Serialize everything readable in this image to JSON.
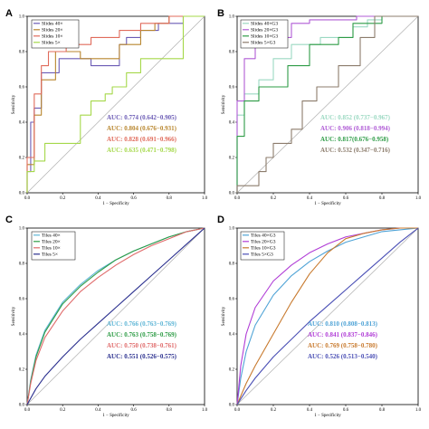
{
  "chart_data": [
    {
      "panel_label": "A",
      "type": "line",
      "xlabel": "1 − Specificity",
      "ylabel": "Sensitivity",
      "xlim": [
        0,
        1
      ],
      "ylim": [
        0,
        1
      ],
      "ticks": [
        "0.0",
        "0.2",
        "0.4",
        "0.6",
        "0.8",
        "1.0"
      ],
      "legend_position": "top-left",
      "grid": false,
      "diagonal": true,
      "series": [
        {
          "name": "Slides 40×",
          "color": "#6b5bb5",
          "x": [
            0,
            0,
            0.02,
            0.02,
            0.04,
            0.04,
            0.08,
            0.08,
            0.18,
            0.18,
            0.36,
            0.36,
            0.52,
            0.52,
            0.56,
            0.56,
            0.64,
            0.64,
            0.74,
            0.74,
            0.88,
            0.88,
            1
          ],
          "y": [
            0,
            0.12,
            0.12,
            0.4,
            0.4,
            0.48,
            0.48,
            0.68,
            0.68,
            0.76,
            0.76,
            0.72,
            0.72,
            0.84,
            0.84,
            0.88,
            0.88,
            0.92,
            0.92,
            0.96,
            0.96,
            1,
            1
          ]
        },
        {
          "name": "Slides 20×",
          "color": "#b8862e",
          "x": [
            0,
            0,
            0.04,
            0.04,
            0.08,
            0.08,
            0.16,
            0.16,
            0.3,
            0.3,
            0.52,
            0.52,
            0.64,
            0.64,
            0.72,
            0.72,
            0.8,
            0.8,
            1
          ],
          "y": [
            0,
            0.16,
            0.16,
            0.44,
            0.44,
            0.64,
            0.64,
            0.8,
            0.8,
            0.76,
            0.76,
            0.84,
            0.84,
            0.92,
            0.92,
            0.96,
            0.96,
            1,
            1
          ]
        },
        {
          "name": "Slides 10×",
          "color": "#e06b5b",
          "x": [
            0,
            0,
            0.04,
            0.04,
            0.08,
            0.08,
            0.12,
            0.12,
            0.22,
            0.22,
            0.36,
            0.36,
            0.52,
            0.52,
            0.64,
            0.64,
            0.8,
            0.8,
            1
          ],
          "y": [
            0,
            0.2,
            0.2,
            0.56,
            0.56,
            0.72,
            0.72,
            0.8,
            0.8,
            0.84,
            0.84,
            0.88,
            0.88,
            0.92,
            0.92,
            0.96,
            0.96,
            1,
            1
          ]
        },
        {
          "name": "Slides 5×",
          "color": "#a5d84a",
          "x": [
            0,
            0,
            0.04,
            0.04,
            0.1,
            0.1,
            0.3,
            0.3,
            0.36,
            0.36,
            0.44,
            0.44,
            0.48,
            0.48,
            0.56,
            0.56,
            0.64,
            0.64,
            0.88,
            0.88,
            1
          ],
          "y": [
            0,
            0.12,
            0.12,
            0.18,
            0.18,
            0.28,
            0.28,
            0.44,
            0.44,
            0.52,
            0.52,
            0.56,
            0.56,
            0.6,
            0.6,
            0.68,
            0.68,
            0.76,
            0.76,
            1,
            1
          ]
        }
      ],
      "auc_labels": [
        {
          "text": "AUC: 0.774 (0.642−0.905)",
          "color": "#6b5bb5"
        },
        {
          "text": "AUC: 0.804 (0.676−0.931)",
          "color": "#b8862e"
        },
        {
          "text": "AUC: 0.828 (0.691−0.966)",
          "color": "#e06b5b"
        },
        {
          "text": "AUC: 0.635 (0.471−0.798)",
          "color": "#a5d84a"
        }
      ]
    },
    {
      "panel_label": "B",
      "type": "line",
      "xlabel": "1 − Specificity",
      "ylabel": "Sensitivity",
      "xlim": [
        0,
        1
      ],
      "ylim": [
        0,
        1
      ],
      "ticks": [
        "0.0",
        "0.2",
        "0.4",
        "0.6",
        "0.8",
        "1.0"
      ],
      "legend_position": "top-left",
      "grid": false,
      "diagonal": true,
      "series": [
        {
          "name": "Slides 40×G3",
          "color": "#9bd9c2",
          "x": [
            0,
            0,
            0.04,
            0.04,
            0.12,
            0.12,
            0.2,
            0.2,
            0.3,
            0.3,
            0.46,
            0.46,
            0.64,
            0.64,
            0.72,
            0.72,
            0.8,
            0.8,
            1
          ],
          "y": [
            0,
            0.44,
            0.44,
            0.56,
            0.56,
            0.64,
            0.64,
            0.76,
            0.76,
            0.84,
            0.84,
            0.88,
            0.88,
            0.94,
            0.94,
            0.98,
            0.98,
            1,
            1
          ]
        },
        {
          "name": "Slides 20×G3",
          "color": "#b05cd6",
          "x": [
            0,
            0,
            0.04,
            0.04,
            0.1,
            0.1,
            0.2,
            0.2,
            0.3,
            0.3,
            0.4,
            0.4,
            0.66,
            0.66,
            0.72,
            0.72,
            1
          ],
          "y": [
            0,
            0.52,
            0.52,
            0.76,
            0.76,
            0.84,
            0.84,
            0.88,
            0.88,
            0.96,
            0.96,
            0.98,
            0.98,
            1,
            1,
            1,
            1
          ]
        },
        {
          "name": "Slides 10×G3",
          "color": "#2e9c46",
          "x": [
            0,
            0,
            0.04,
            0.04,
            0.12,
            0.12,
            0.28,
            0.28,
            0.4,
            0.4,
            0.56,
            0.56,
            0.64,
            0.64,
            0.8,
            0.8,
            1
          ],
          "y": [
            0,
            0.32,
            0.32,
            0.52,
            0.52,
            0.6,
            0.6,
            0.72,
            0.72,
            0.84,
            0.84,
            0.88,
            0.88,
            0.96,
            0.96,
            1,
            1
          ]
        },
        {
          "name": "Slides 5×G3",
          "color": "#8c7c6c",
          "x": [
            0,
            0,
            0.12,
            0.12,
            0.16,
            0.16,
            0.2,
            0.2,
            0.3,
            0.3,
            0.36,
            0.36,
            0.44,
            0.44,
            0.56,
            0.56,
            0.68,
            0.68,
            0.76,
            0.76,
            1
          ],
          "y": [
            0,
            0.04,
            0.04,
            0.12,
            0.12,
            0.2,
            0.2,
            0.28,
            0.28,
            0.36,
            0.36,
            0.52,
            0.52,
            0.6,
            0.6,
            0.72,
            0.72,
            0.88,
            0.88,
            1,
            1
          ]
        }
      ],
      "auc_labels": [
        {
          "text": "AUC: 0.852 (0.737−0.967)",
          "color": "#9bd9c2"
        },
        {
          "text": "AUC: 0.906 (0.818−0.994)",
          "color": "#b05cd6"
        },
        {
          "text": "AUC:  0.817(0.676−0.958)",
          "color": "#2e9c46"
        },
        {
          "text": "AUC: 0.532 (0.347−0.716)",
          "color": "#8c7c6c"
        }
      ]
    },
    {
      "panel_label": "C",
      "type": "line",
      "xlabel": "1 − Specificity",
      "ylabel": "Sensitivity",
      "xlim": [
        0,
        1
      ],
      "ylim": [
        0,
        1
      ],
      "ticks": [
        "0.0",
        "0.2",
        "0.4",
        "0.6",
        "0.8",
        "1.0"
      ],
      "legend_position": "top-left",
      "grid": false,
      "diagonal": true,
      "series": [
        {
          "name": "Tiles 40×",
          "color": "#5fb6d6",
          "x": [
            0,
            0.02,
            0.05,
            0.1,
            0.2,
            0.3,
            0.4,
            0.5,
            0.6,
            0.7,
            0.8,
            0.9,
            1
          ],
          "y": [
            0,
            0.14,
            0.28,
            0.42,
            0.58,
            0.68,
            0.76,
            0.82,
            0.87,
            0.91,
            0.95,
            0.98,
            1
          ]
        },
        {
          "name": "Tiles 20×",
          "color": "#2e9c46",
          "x": [
            0,
            0.02,
            0.05,
            0.1,
            0.2,
            0.3,
            0.4,
            0.5,
            0.6,
            0.7,
            0.8,
            0.9,
            1
          ],
          "y": [
            0,
            0.13,
            0.27,
            0.41,
            0.57,
            0.67,
            0.75,
            0.82,
            0.87,
            0.91,
            0.95,
            0.98,
            1
          ]
        },
        {
          "name": "Tiles 10×",
          "color": "#e06b6b",
          "x": [
            0,
            0.02,
            0.05,
            0.1,
            0.2,
            0.3,
            0.4,
            0.5,
            0.6,
            0.7,
            0.8,
            0.9,
            1
          ],
          "y": [
            0,
            0.12,
            0.25,
            0.38,
            0.53,
            0.64,
            0.72,
            0.79,
            0.85,
            0.9,
            0.94,
            0.98,
            1
          ]
        },
        {
          "name": "Tiles 5×",
          "color": "#2a2f8e",
          "x": [
            0,
            0.05,
            0.1,
            0.2,
            0.3,
            0.4,
            0.5,
            0.6,
            0.7,
            0.8,
            0.9,
            1
          ],
          "y": [
            0,
            0.09,
            0.16,
            0.27,
            0.37,
            0.46,
            0.55,
            0.64,
            0.73,
            0.82,
            0.91,
            1
          ]
        }
      ],
      "auc_labels": [
        {
          "text": "AUC: 0.766 (0.763−0.769)",
          "color": "#5fb6d6"
        },
        {
          "text": "AUC: 0.763 (0.758−0.769)",
          "color": "#2e9c46"
        },
        {
          "text": "AUC: 0.750 (0.738−0.761)",
          "color": "#e06b6b"
        },
        {
          "text": "AUC: 0.551 (0.526−0.575)",
          "color": "#2a2f8e"
        }
      ]
    },
    {
      "panel_label": "D",
      "type": "line",
      "xlabel": "1 − Specificity",
      "ylabel": "Sensitivity",
      "xlim": [
        0,
        1
      ],
      "ylim": [
        0,
        1
      ],
      "ticks": [
        "0.0",
        "0.2",
        "0.4",
        "0.6",
        "0.8",
        "1.0"
      ],
      "legend_position": "top-left",
      "grid": false,
      "diagonal": true,
      "series": [
        {
          "name": "Tiles 40×G3",
          "color": "#4fa3d6",
          "x": [
            0,
            0.02,
            0.05,
            0.1,
            0.2,
            0.3,
            0.4,
            0.5,
            0.6,
            0.7,
            0.8,
            0.9,
            1
          ],
          "y": [
            0,
            0.15,
            0.3,
            0.45,
            0.62,
            0.73,
            0.81,
            0.87,
            0.92,
            0.95,
            0.98,
            0.99,
            1
          ]
        },
        {
          "name": "Tiles 20×G3",
          "color": "#b03cd6",
          "x": [
            0,
            0.02,
            0.05,
            0.1,
            0.2,
            0.3,
            0.4,
            0.5,
            0.6,
            0.7,
            0.8,
            0.9,
            1
          ],
          "y": [
            0,
            0.22,
            0.4,
            0.55,
            0.7,
            0.79,
            0.86,
            0.91,
            0.95,
            0.97,
            0.99,
            1,
            1
          ]
        },
        {
          "name": "Tiles 10×G3",
          "color": "#c87a2e",
          "x": [
            0,
            0.05,
            0.1,
            0.2,
            0.3,
            0.4,
            0.5,
            0.6,
            0.7,
            0.8,
            0.9,
            1
          ],
          "y": [
            0,
            0.12,
            0.22,
            0.4,
            0.58,
            0.74,
            0.86,
            0.94,
            0.97,
            0.99,
            1,
            1
          ]
        },
        {
          "name": "Tiles 5×G3",
          "color": "#4a4fb5",
          "x": [
            0,
            0.05,
            0.1,
            0.2,
            0.3,
            0.4,
            0.5,
            0.6,
            0.7,
            0.8,
            0.9,
            1
          ],
          "y": [
            0,
            0.08,
            0.15,
            0.27,
            0.37,
            0.47,
            0.56,
            0.65,
            0.74,
            0.83,
            0.92,
            1
          ]
        }
      ],
      "auc_labels": [
        {
          "text": "AUC: 0.810 (0.808−0.813)",
          "color": "#4fa3d6"
        },
        {
          "text": "AUC: 0.841 (0.837−0.846)",
          "color": "#b03cd6"
        },
        {
          "text": "AUC: 0.769 (0.758−0.780)",
          "color": "#c87a2e"
        },
        {
          "text": "AUC: 0.526 (0.513−0.540)",
          "color": "#4a4fb5"
        }
      ]
    }
  ]
}
